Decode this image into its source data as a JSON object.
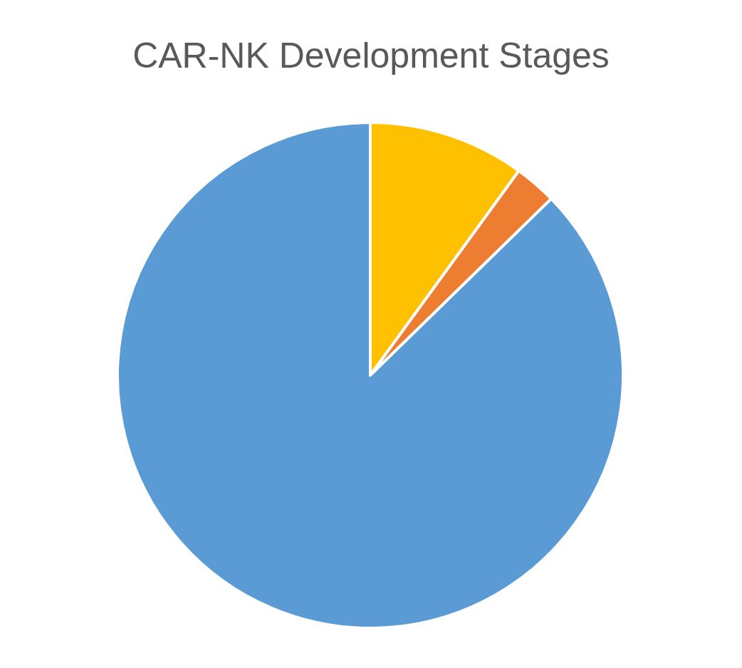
{
  "chart_data": {
    "type": "pie",
    "title": "CAR-NK Development Stages",
    "categories": [
      null,
      null,
      null
    ],
    "values": [
      10,
      2.7,
      87.3
    ],
    "colors": [
      "#ffc000",
      "#ed7d31",
      "#5b9bd5"
    ]
  }
}
